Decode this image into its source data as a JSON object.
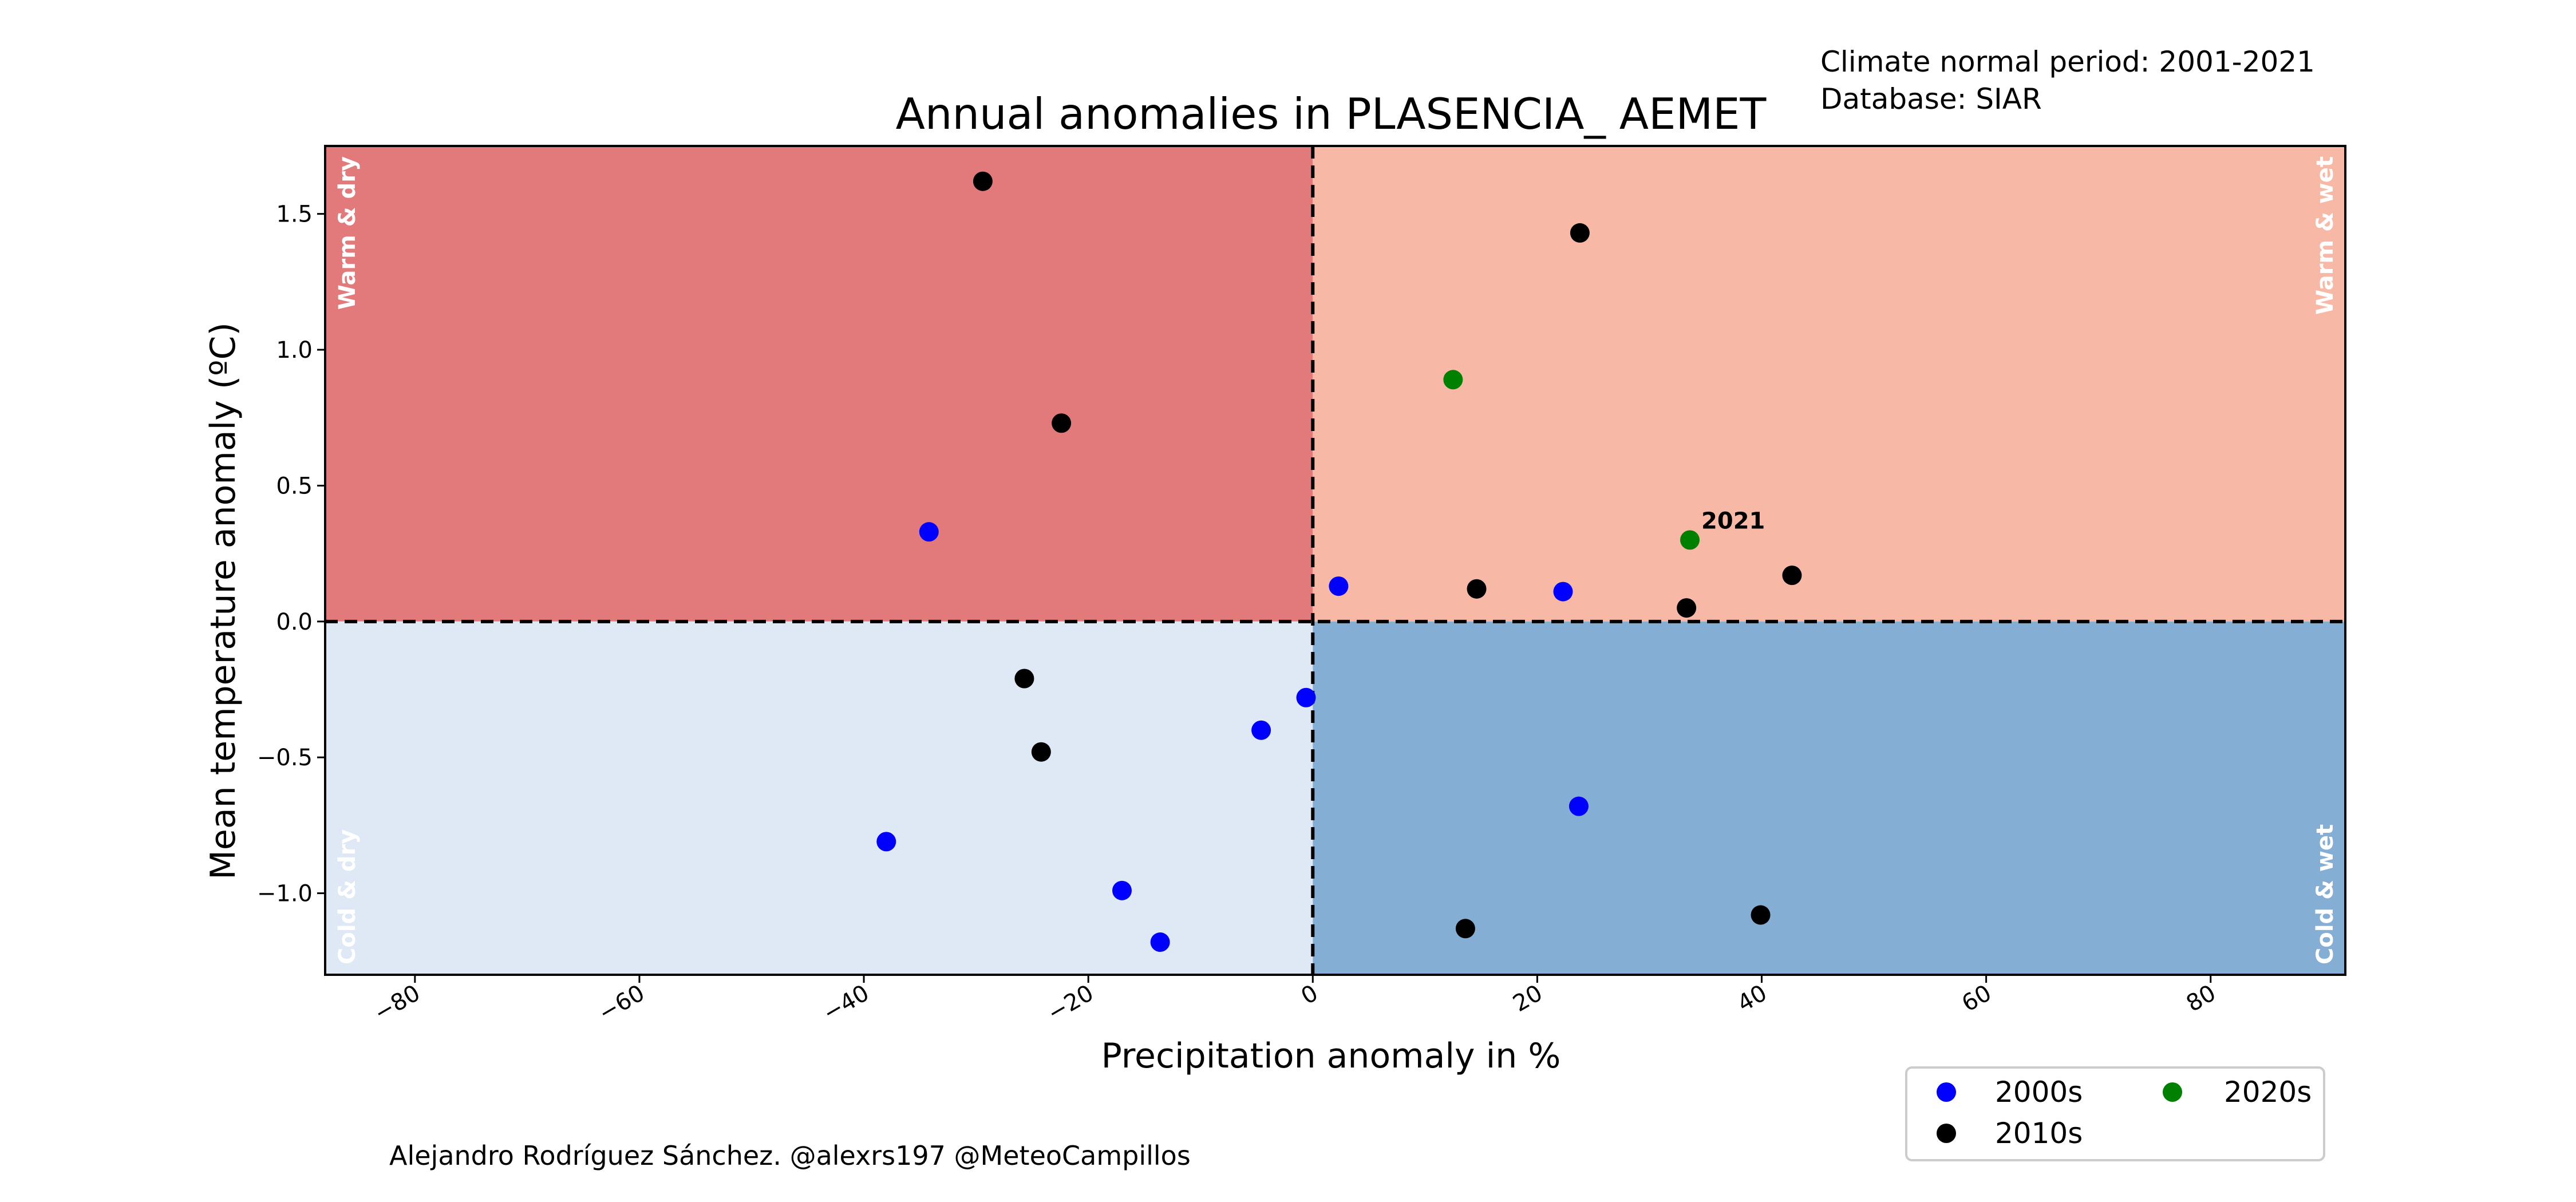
{
  "meta": {
    "normal_period": "Climate normal period: 2001-2021",
    "database": "Database: SIAR"
  },
  "credit": "Alejandro Rodríguez Sánchez. @alexrs197 @MeteoCampillos",
  "quadrants": {
    "warm_dry": "Warm & dry",
    "warm_wet": "Warm & wet",
    "cold_dry": "Cold & dry",
    "cold_wet": "Cold & wet"
  },
  "colors": {
    "warm_dry": "#e27a7c",
    "warm_wet": "#f7b9a6",
    "cold_dry": "#dee9f5",
    "cold_wet": "#84aed4",
    "2000s": "#0000ff",
    "2010s": "#000000",
    "2020s": "#008000"
  },
  "chart_data": {
    "type": "scatter",
    "title": "Annual anomalies in PLASENCIA_ AEMET",
    "xlabel": "Precipitation anomaly in %",
    "ylabel": "Mean temperature anomaly (ºC)",
    "xlim": [
      -88,
      92
    ],
    "ylim": [
      -1.3,
      1.75
    ],
    "xticks": [
      -80,
      -60,
      -40,
      -20,
      0,
      20,
      40,
      60,
      80
    ],
    "xtick_labels": [
      "−80",
      "−60",
      "−40",
      "−20",
      "0",
      "20",
      "40",
      "60",
      "80"
    ],
    "yticks": [
      -1.0,
      -0.5,
      0.0,
      0.5,
      1.0,
      1.5
    ],
    "ytick_labels": [
      "−1.0",
      "−0.5",
      "0.0",
      "0.5",
      "1.0",
      "1.5"
    ],
    "reference_lines": {
      "x": 0,
      "y": 0
    },
    "legend_position": "lower-right, below axes",
    "series": [
      {
        "name": "2000s",
        "color": "#0000ff",
        "points": [
          {
            "x": -34.2,
            "y": 0.33
          },
          {
            "x": 2.3,
            "y": 0.13
          },
          {
            "x": 22.3,
            "y": 0.11
          },
          {
            "x": -0.6,
            "y": -0.28
          },
          {
            "x": -4.6,
            "y": -0.4
          },
          {
            "x": 23.7,
            "y": -0.68
          },
          {
            "x": -38.0,
            "y": -0.81
          },
          {
            "x": -17.0,
            "y": -0.99
          },
          {
            "x": -13.6,
            "y": -1.18
          }
        ]
      },
      {
        "name": "2010s",
        "color": "#000000",
        "points": [
          {
            "x": -29.4,
            "y": 1.62
          },
          {
            "x": 23.8,
            "y": 1.43
          },
          {
            "x": -22.4,
            "y": 0.73
          },
          {
            "x": 14.6,
            "y": 0.12
          },
          {
            "x": 42.7,
            "y": 0.17
          },
          {
            "x": 33.3,
            "y": 0.05
          },
          {
            "x": -25.7,
            "y": -0.21
          },
          {
            "x": -24.2,
            "y": -0.48
          },
          {
            "x": 13.6,
            "y": -1.13
          },
          {
            "x": 39.9,
            "y": -1.08
          }
        ]
      },
      {
        "name": "2020s",
        "color": "#008000",
        "points": [
          {
            "x": 12.5,
            "y": 0.89
          },
          {
            "x": 33.6,
            "y": 0.3,
            "label": "2021"
          }
        ]
      }
    ]
  }
}
